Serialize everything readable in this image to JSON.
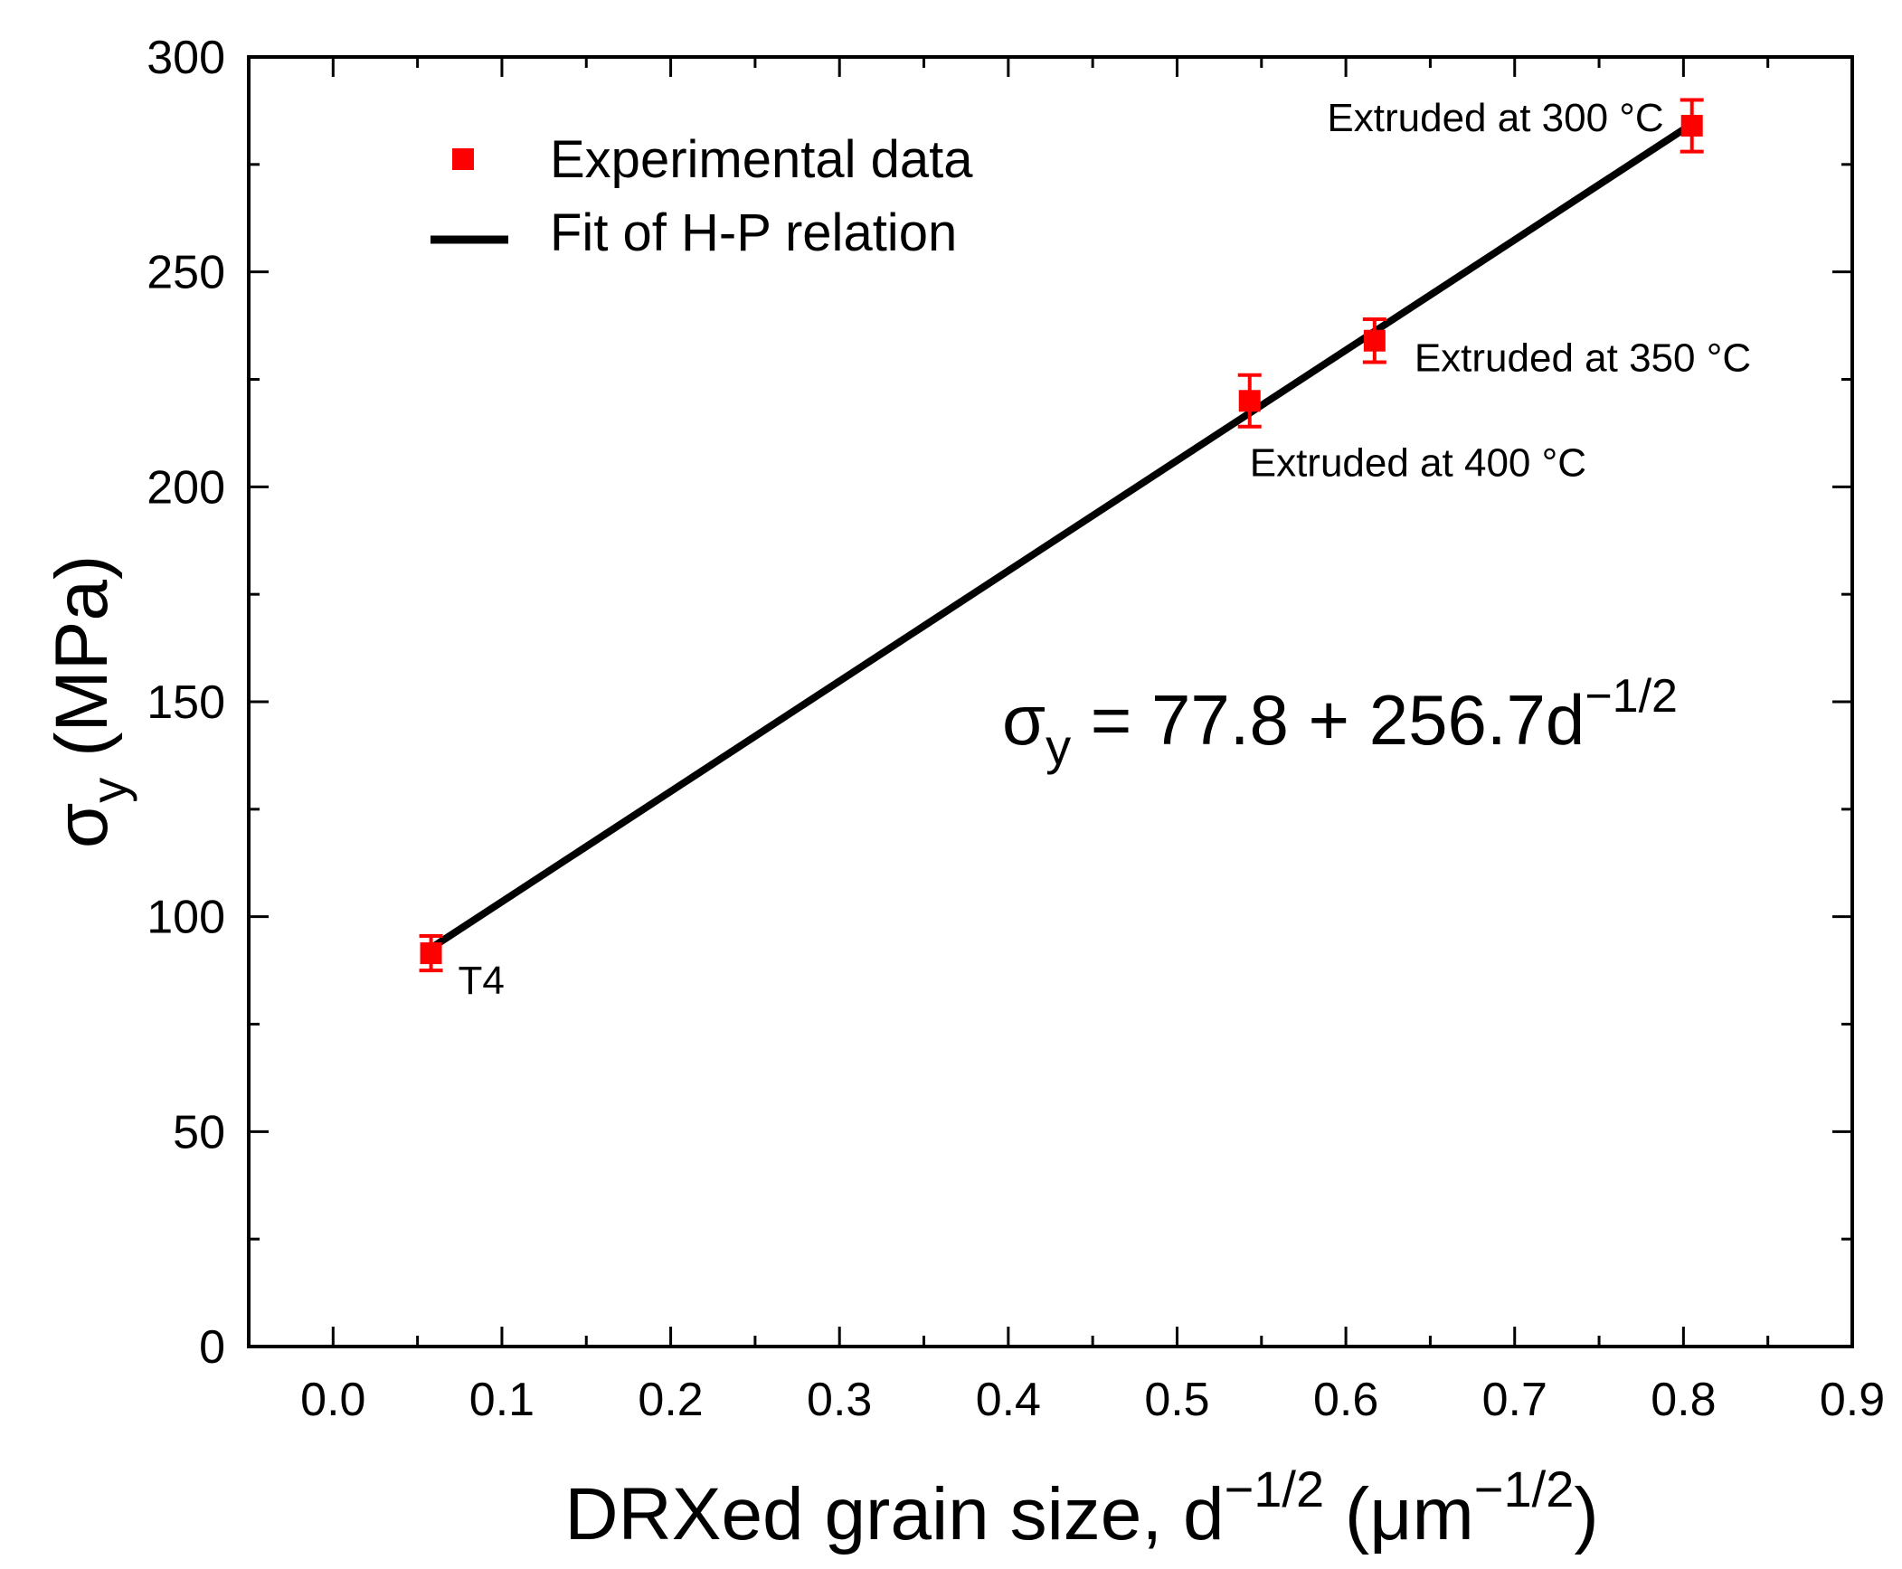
{
  "chart_data": {
    "type": "scatter",
    "xlabel": "DRXed grain size, d",
    "xlabel_sup": "−1/2",
    "xlabel_unit_open": " (μm",
    "xlabel_unit_sup": "−1/2",
    "xlabel_unit_close": ")",
    "ylabel_symbol": "σ",
    "ylabel_sub": "y",
    "ylabel_unit": " (MPa)",
    "xlim": [
      -0.05,
      0.9
    ],
    "ylim": [
      0,
      300
    ],
    "xticks": [
      0.0,
      0.1,
      0.2,
      0.3,
      0.4,
      0.5,
      0.6,
      0.7,
      0.8,
      0.9
    ],
    "xtick_labels": [
      "0.0",
      "0.1",
      "0.2",
      "0.3",
      "0.4",
      "0.5",
      "0.6",
      "0.7",
      "0.8",
      "0.9"
    ],
    "yticks": [
      0,
      50,
      100,
      150,
      200,
      250,
      300
    ],
    "ytick_labels": [
      "0",
      "50",
      "100",
      "150",
      "200",
      "250",
      "300"
    ],
    "series": [
      {
        "name": "Experimental data",
        "kind": "points",
        "color": "#ff0000",
        "x": [
          0.058,
          0.543,
          0.617,
          0.805
        ],
        "y": [
          91.5,
          220,
          234,
          284
        ],
        "yerr": [
          4,
          6,
          5,
          6
        ]
      },
      {
        "name": "Fit of H-P relation",
        "kind": "line",
        "color": "#000000",
        "x": [
          0.058,
          0.805
        ],
        "y": [
          92.7,
          284.4
        ]
      }
    ],
    "annotations": [
      {
        "text": "T4",
        "point_index": 0
      },
      {
        "text": "Extruded at 400 °C",
        "point_index": 1
      },
      {
        "text": "Extruded at 350 °C",
        "point_index": 2
      },
      {
        "text": "Extruded at 300 °C",
        "point_index": 3
      }
    ],
    "equation": {
      "symbol": "σ",
      "sub": "y",
      "body": " = 77.8 + 256.7d",
      "sup": "−1/2"
    },
    "legend": {
      "position": "top-left",
      "entries": [
        "Experimental data",
        "Fit of H-P relation"
      ]
    }
  }
}
